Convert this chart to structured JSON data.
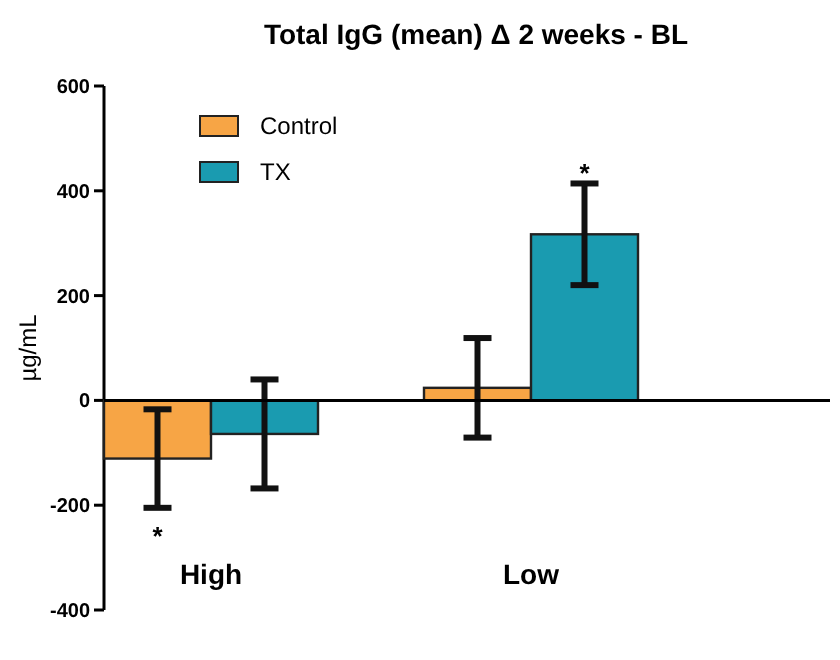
{
  "chart_data": {
    "type": "bar",
    "title": "Total IgG (mean) Δ 2 weeks - BL",
    "ylabel": "µg/mL",
    "categories": [
      "High",
      "Low"
    ],
    "series": [
      {
        "name": "Control",
        "color": "#f7a545",
        "values": [
          -111,
          24
        ],
        "errors": [
          94,
          95
        ]
      },
      {
        "name": "TX",
        "color": "#1a9bb0",
        "values": [
          -64,
          317
        ],
        "errors": [
          104,
          97
        ]
      }
    ],
    "ylim": [
      -400,
      600
    ],
    "yticks": [
      -400,
      -200,
      0,
      200,
      400,
      600
    ],
    "legend": "top left",
    "annotations": [
      "*",
      "*"
    ]
  }
}
